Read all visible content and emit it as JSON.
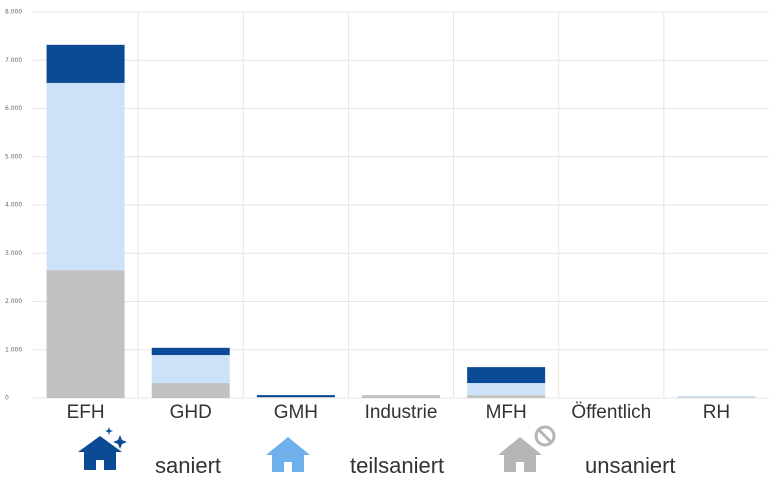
{
  "chart_data": {
    "type": "stacked_bar",
    "categories": [
      "EFH",
      "GHD",
      "GMH",
      "Industrie",
      "MFH",
      "Öffentlich",
      "RH"
    ],
    "series": [
      {
        "name": "unsaniert",
        "color": "#c2c2c2",
        "values": [
          2650,
          310,
          10,
          60,
          60,
          0,
          10
        ]
      },
      {
        "name": "teilsaniert",
        "color": "#cce2f8",
        "values": [
          3880,
          580,
          10,
          0,
          250,
          0,
          30
        ]
      },
      {
        "name": "saniert",
        "color": "#0b4a94",
        "values": [
          790,
          150,
          40,
          0,
          330,
          0,
          0
        ]
      }
    ],
    "ylim": [
      0,
      8000
    ],
    "yticks": [
      0,
      {
        "value": 1000,
        "label": "1.000"
      },
      {
        "value": 2000,
        "label": "2.000"
      },
      {
        "value": 3000,
        "label": "3.000"
      },
      {
        "value": 4000,
        "label": "4.000"
      },
      {
        "value": 5000,
        "label": "5.000"
      },
      {
        "value": 6000,
        "label": "6.000"
      },
      {
        "value": 7000,
        "label": "7.000"
      },
      {
        "value": 8000,
        "label": "8.000"
      }
    ],
    "grid": true
  }
}
